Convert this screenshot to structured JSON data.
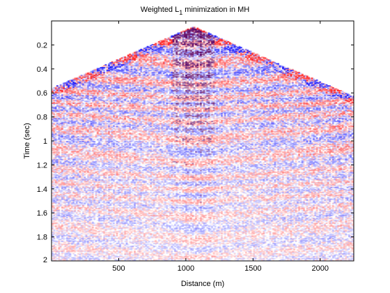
{
  "chart_data": {
    "type": "heatmap",
    "title_main": "Weighted L",
    "title_sub": "1",
    "title_tail": " minimization in MH",
    "xlabel": "Distance (m)",
    "ylabel": "Time (sec)",
    "xlim": [
      0,
      2250
    ],
    "ylim": [
      2.0,
      0.0
    ],
    "x_ticks": [
      500,
      1000,
      1500,
      2000
    ],
    "x_tick_labels": [
      "500",
      "1000",
      "1500",
      "2000"
    ],
    "y_ticks": [
      0.2,
      0.4,
      0.6,
      0.8,
      1.0,
      1.2,
      1.4,
      1.6,
      1.8,
      2.0
    ],
    "y_tick_labels": [
      "0.2",
      "0.4",
      "0.6",
      "0.8",
      "1",
      "1.2",
      "1.4",
      "1.6",
      "1.8",
      "2"
    ],
    "apex_distance": 1050,
    "apex_time": 0.05,
    "colors": {
      "positive": "#1a1aff",
      "negative": "#ff2020",
      "dense": "#5a0060",
      "background": "#ffffff"
    },
    "grid": false
  }
}
